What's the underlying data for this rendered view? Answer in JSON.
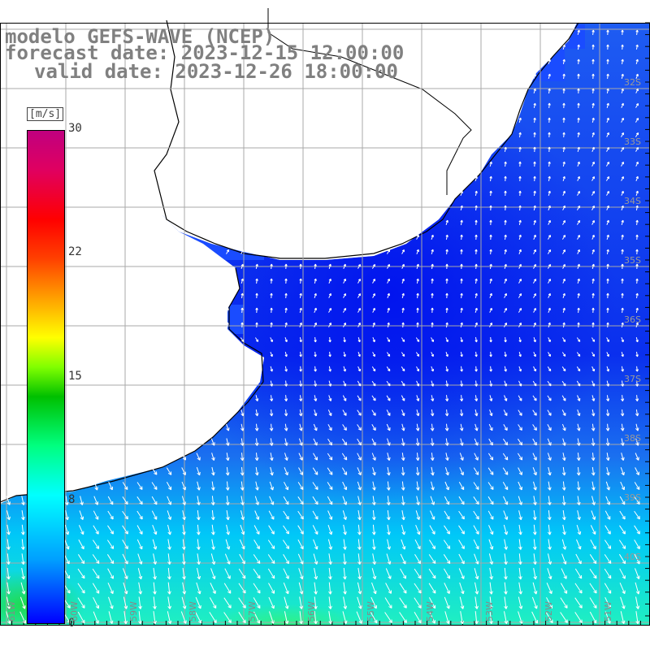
{
  "title": {
    "line1": "modelo GEFS-WAVE (NCEP)",
    "line2": "forecast date: 2023-12-15 12:00:00",
    "line3": "valid date: 2023-12-26 18:00:00"
  },
  "colorbar": {
    "unit": "[m/s]",
    "min": 0,
    "max": 30,
    "ticks": [
      "30",
      "22",
      "15",
      "8",
      "0"
    ]
  },
  "axes": {
    "lat_labels": [
      "32S",
      "33S",
      "34S",
      "35S",
      "36S",
      "37S",
      "38S",
      "39S",
      "40S"
    ],
    "lon_labels": [
      "61W",
      "60W",
      "59W",
      "58W",
      "57W",
      "56W",
      "55W",
      "54W",
      "53W",
      "52W",
      "51W"
    ]
  },
  "colors": {
    "ocean_low": "#0000ff",
    "ocean_mid": "#00a0ff",
    "ocean_high": "#00ffff",
    "land": "#ffffff",
    "grid": "#a0a0a0",
    "coast": "#000000",
    "arrows": "#ffffff"
  }
}
